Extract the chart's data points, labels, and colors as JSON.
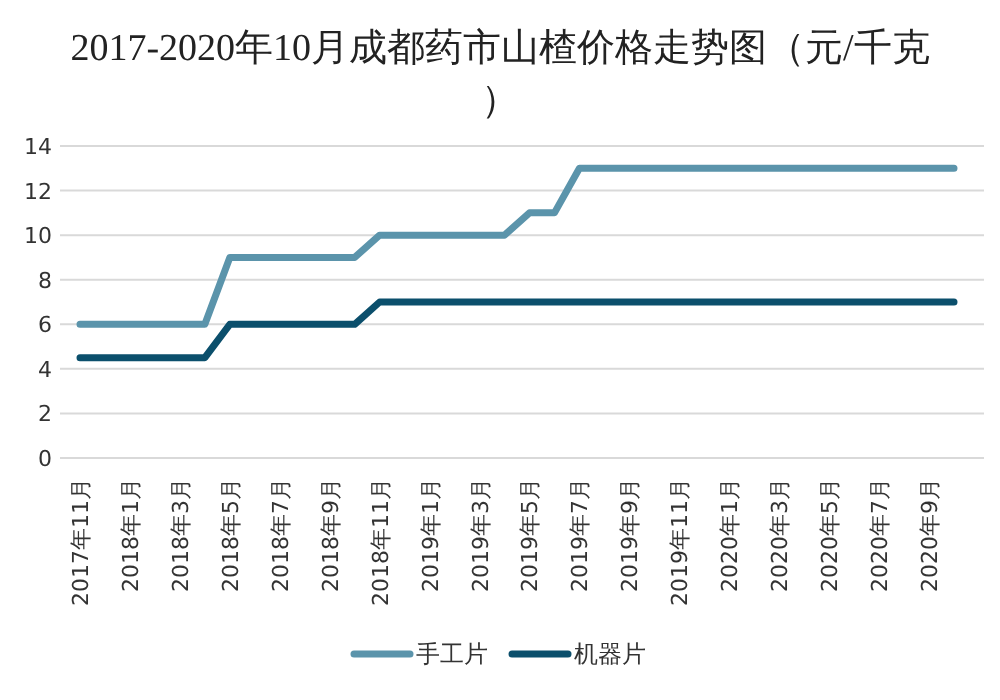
{
  "chart_data": {
    "type": "line",
    "title": "2017-2020年10月成都药市山楂价格走势图（元/千克）",
    "categories": [
      "2017年11月",
      null,
      "2018年1月",
      null,
      "2018年3月",
      null,
      "2018年5月",
      null,
      "2018年7月",
      null,
      "2018年9月",
      null,
      "2018年11月",
      null,
      "2019年1月",
      null,
      "2019年3月",
      null,
      "2019年5月",
      null,
      "2019年7月",
      null,
      "2019年9月",
      null,
      "2019年11月",
      null,
      "2020年1月",
      null,
      "2020年3月",
      null,
      "2020年5月",
      null,
      "2020年7月",
      null,
      "2020年9月",
      null
    ],
    "series": [
      {
        "name": "手工片",
        "color": "#5b94ab",
        "values": [
          6,
          6,
          6,
          6,
          6,
          6,
          9,
          9,
          9,
          9,
          9,
          9,
          10,
          10,
          10,
          10,
          10,
          10,
          11,
          11,
          13,
          13,
          13,
          13,
          13,
          13,
          13,
          13,
          13,
          13,
          13,
          13,
          13,
          13,
          13,
          13
        ]
      },
      {
        "name": "机器片",
        "color": "#0b4f6c",
        "values": [
          4.5,
          4.5,
          4.5,
          4.5,
          4.5,
          4.5,
          6,
          6,
          6,
          6,
          6,
          6,
          7,
          7,
          7,
          7,
          7,
          7,
          7,
          7,
          7,
          7,
          7,
          7,
          7,
          7,
          7,
          7,
          7,
          7,
          7,
          7,
          7,
          7,
          7,
          7
        ]
      }
    ],
    "ylim": [
      0,
      14
    ],
    "yticks": [
      0,
      2,
      4,
      6,
      8,
      10,
      12,
      14
    ],
    "grid": "y",
    "legend": "bottom",
    "marker": "none",
    "line_style": "solid"
  }
}
